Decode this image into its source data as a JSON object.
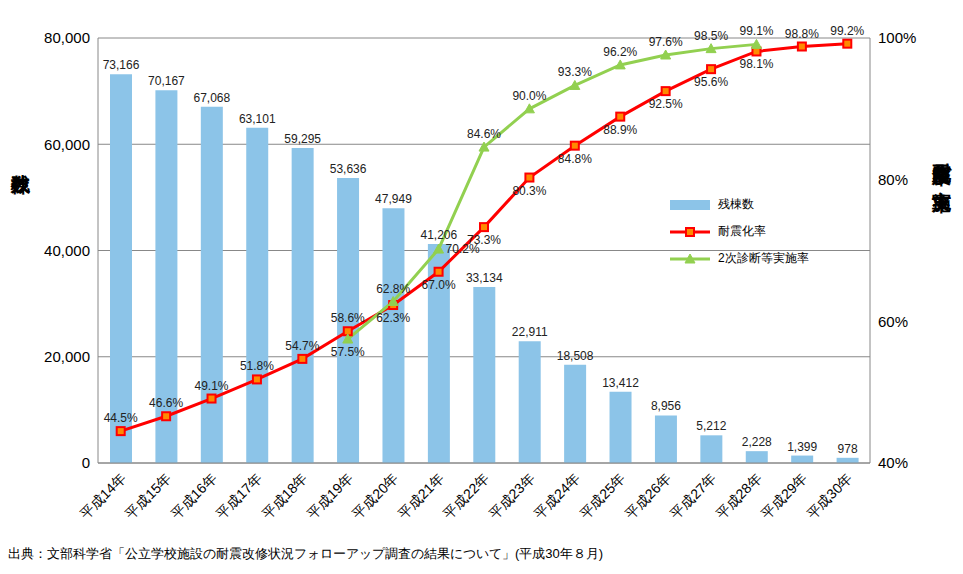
{
  "chart_data": {
    "type": "bar",
    "categories": [
      "平成14年",
      "平成15年",
      "平成16年",
      "平成17年",
      "平成18年",
      "平成19年",
      "平成20年",
      "平成21年",
      "平成22年",
      "平成23年",
      "平成24年",
      "平成25年",
      "平成26年",
      "平成27年",
      "平成28年",
      "平成29年",
      "平成30年"
    ],
    "series": [
      {
        "name": "残棟数",
        "type": "bar",
        "color": "#8cc4e8",
        "values": [
          73166,
          70167,
          67068,
          63101,
          59295,
          53636,
          47949,
          41206,
          33134,
          22911,
          18508,
          13412,
          8956,
          5212,
          2228,
          1399,
          978
        ],
        "value_labels": [
          "73,166",
          "70,167",
          "67,068",
          "63,101",
          "59,295",
          "53,636",
          "47,949",
          "41,206",
          "33,134",
          "22,911",
          "18,508",
          "13,412",
          "8,956",
          "5,212",
          "2,228",
          "1,399",
          "978"
        ]
      },
      {
        "name": "耐震化率",
        "type": "line",
        "axis": "y2",
        "color": "#ff0000",
        "marker": "square",
        "values": [
          44.5,
          46.6,
          49.1,
          51.8,
          54.7,
          58.6,
          62.3,
          67.0,
          73.3,
          80.3,
          84.8,
          88.9,
          92.5,
          95.6,
          98.1,
          98.8,
          99.2
        ],
        "value_labels": [
          "44.5%",
          "46.6%",
          "49.1%",
          "51.8%",
          "54.7%",
          "58.6%",
          "62.3%",
          "67.0%",
          "73.3%",
          "80.3%",
          "84.8%",
          "88.9%",
          "92.5%",
          "95.6%",
          "98.1%",
          "98.8%",
          "99.2%"
        ]
      },
      {
        "name": "2次診断等実施率",
        "type": "line",
        "axis": "y2",
        "color": "#92d050",
        "marker": "triangle",
        "values": [
          null,
          null,
          null,
          null,
          null,
          57.5,
          62.8,
          70.2,
          84.6,
          90.0,
          93.3,
          96.2,
          97.6,
          98.5,
          99.1,
          null,
          null
        ],
        "value_labels": [
          null,
          null,
          null,
          null,
          null,
          "57.5%",
          "62.8%",
          "70.2%",
          "84.6%",
          "90.0%",
          "93.3%",
          "96.2%",
          "97.6%",
          "98.5%",
          "99.1%",
          null,
          null
        ]
      }
    ],
    "y_label": "残棟数",
    "y2_label": "耐震化率及び実施率",
    "ylim": [
      0,
      80000
    ],
    "yticks": [
      0,
      {
        "value": 20000,
        "label": "20,000"
      },
      {
        "value": 40000,
        "label": "40,000"
      },
      {
        "value": 60000,
        "label": "60,000"
      },
      {
        "value": 80000,
        "label": "80,000"
      }
    ],
    "y2lim": [
      40,
      100
    ],
    "y2ticks": [
      {
        "value": 40,
        "label": "40%"
      },
      {
        "value": 60,
        "label": "60%"
      },
      {
        "value": 80,
        "label": "80%"
      },
      {
        "value": 100,
        "label": "100%"
      }
    ],
    "grid": true,
    "legend": "right",
    "data_labels": true,
    "source": "出典：文部科学省「公立学校施設の耐震改修状況フォローアップ調査の結果について」(平成30年８月)"
  }
}
